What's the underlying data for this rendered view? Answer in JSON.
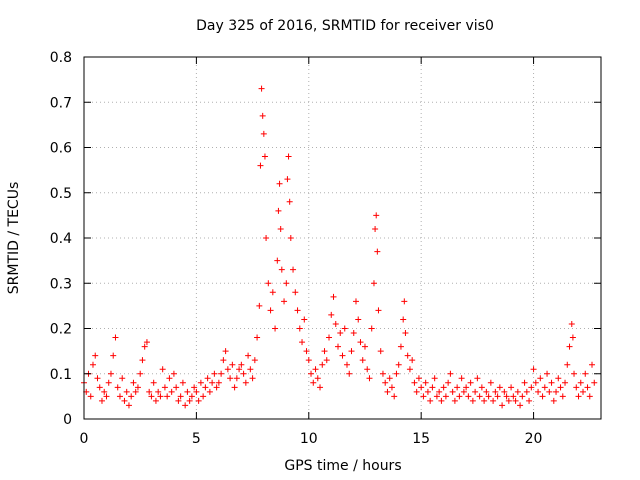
{
  "chart_data": {
    "type": "scatter",
    "title": "Day 325 of 2016, SRMTID for receiver vis0",
    "xlabel": "GPS time / hours",
    "ylabel": "SRMTID / TECUs",
    "xlim": [
      0,
      23
    ],
    "ylim": [
      0,
      0.8
    ],
    "xticks": [
      0,
      5,
      10,
      15,
      20
    ],
    "yticks": [
      0,
      0.1,
      0.2,
      0.3,
      0.4,
      0.5,
      0.6,
      0.7,
      0.8
    ],
    "xtick_labels": [
      "0",
      "5",
      "10",
      "15",
      "20"
    ],
    "ytick_labels": [
      "0",
      "0.1",
      "0.2",
      "0.3",
      "0.4",
      "0.5",
      "0.6",
      "0.7",
      "0.8"
    ],
    "grid": true,
    "marker": "+",
    "color": "#ff0000",
    "series": [
      {
        "name": "SRMTID",
        "points": [
          [
            0.0,
            0.08
          ],
          [
            0.1,
            0.06
          ],
          [
            0.2,
            0.1
          ],
          [
            0.3,
            0.05
          ],
          [
            0.4,
            0.12
          ],
          [
            0.5,
            0.14
          ],
          [
            0.6,
            0.09
          ],
          [
            0.7,
            0.07
          ],
          [
            0.8,
            0.04
          ],
          [
            0.9,
            0.06
          ],
          [
            1.0,
            0.05
          ],
          [
            1.1,
            0.08
          ],
          [
            1.2,
            0.1
          ],
          [
            1.3,
            0.14
          ],
          [
            1.4,
            0.18
          ],
          [
            1.5,
            0.07
          ],
          [
            1.6,
            0.05
          ],
          [
            1.7,
            0.09
          ],
          [
            1.8,
            0.04
          ],
          [
            1.9,
            0.06
          ],
          [
            2.0,
            0.03
          ],
          [
            2.1,
            0.05
          ],
          [
            2.2,
            0.08
          ],
          [
            2.3,
            0.06
          ],
          [
            2.4,
            0.07
          ],
          [
            2.5,
            0.1
          ],
          [
            2.6,
            0.13
          ],
          [
            2.7,
            0.16
          ],
          [
            2.8,
            0.17
          ],
          [
            2.9,
            0.06
          ],
          [
            3.0,
            0.05
          ],
          [
            3.1,
            0.08
          ],
          [
            3.2,
            0.04
          ],
          [
            3.3,
            0.06
          ],
          [
            3.4,
            0.05
          ],
          [
            3.5,
            0.11
          ],
          [
            3.6,
            0.07
          ],
          [
            3.7,
            0.05
          ],
          [
            3.8,
            0.09
          ],
          [
            3.9,
            0.06
          ],
          [
            4.0,
            0.1
          ],
          [
            4.1,
            0.07
          ],
          [
            4.2,
            0.04
          ],
          [
            4.3,
            0.05
          ],
          [
            4.4,
            0.08
          ],
          [
            4.5,
            0.03
          ],
          [
            4.6,
            0.06
          ],
          [
            4.7,
            0.04
          ],
          [
            4.8,
            0.05
          ],
          [
            4.9,
            0.07
          ],
          [
            5.0,
            0.06
          ],
          [
            5.1,
            0.04
          ],
          [
            5.2,
            0.08
          ],
          [
            5.3,
            0.05
          ],
          [
            5.4,
            0.07
          ],
          [
            5.5,
            0.09
          ],
          [
            5.6,
            0.06
          ],
          [
            5.7,
            0.08
          ],
          [
            5.8,
            0.1
          ],
          [
            5.9,
            0.07
          ],
          [
            6.0,
            0.08
          ],
          [
            6.1,
            0.1
          ],
          [
            6.2,
            0.13
          ],
          [
            6.3,
            0.15
          ],
          [
            6.4,
            0.11
          ],
          [
            6.5,
            0.09
          ],
          [
            6.6,
            0.12
          ],
          [
            6.7,
            0.07
          ],
          [
            6.8,
            0.09
          ],
          [
            6.9,
            0.11
          ],
          [
            7.0,
            0.12
          ],
          [
            7.1,
            0.1
          ],
          [
            7.2,
            0.08
          ],
          [
            7.3,
            0.14
          ],
          [
            7.4,
            0.11
          ],
          [
            7.5,
            0.09
          ],
          [
            7.6,
            0.13
          ],
          [
            7.7,
            0.18
          ],
          [
            7.8,
            0.25
          ],
          [
            7.85,
            0.56
          ],
          [
            7.9,
            0.73
          ],
          [
            7.95,
            0.67
          ],
          [
            8.0,
            0.63
          ],
          [
            8.05,
            0.58
          ],
          [
            8.1,
            0.4
          ],
          [
            8.2,
            0.3
          ],
          [
            8.3,
            0.24
          ],
          [
            8.4,
            0.28
          ],
          [
            8.5,
            0.2
          ],
          [
            8.6,
            0.35
          ],
          [
            8.65,
            0.46
          ],
          [
            8.7,
            0.52
          ],
          [
            8.75,
            0.42
          ],
          [
            8.8,
            0.33
          ],
          [
            8.9,
            0.26
          ],
          [
            9.0,
            0.3
          ],
          [
            9.05,
            0.53
          ],
          [
            9.1,
            0.58
          ],
          [
            9.15,
            0.48
          ],
          [
            9.2,
            0.4
          ],
          [
            9.3,
            0.33
          ],
          [
            9.4,
            0.28
          ],
          [
            9.5,
            0.24
          ],
          [
            9.6,
            0.2
          ],
          [
            9.7,
            0.17
          ],
          [
            9.8,
            0.22
          ],
          [
            9.9,
            0.15
          ],
          [
            10.0,
            0.13
          ],
          [
            10.1,
            0.1
          ],
          [
            10.2,
            0.08
          ],
          [
            10.3,
            0.11
          ],
          [
            10.4,
            0.09
          ],
          [
            10.5,
            0.07
          ],
          [
            10.6,
            0.12
          ],
          [
            10.7,
            0.15
          ],
          [
            10.8,
            0.13
          ],
          [
            10.9,
            0.18
          ],
          [
            11.0,
            0.23
          ],
          [
            11.1,
            0.27
          ],
          [
            11.2,
            0.21
          ],
          [
            11.3,
            0.16
          ],
          [
            11.4,
            0.19
          ],
          [
            11.5,
            0.14
          ],
          [
            11.6,
            0.2
          ],
          [
            11.7,
            0.12
          ],
          [
            11.8,
            0.1
          ],
          [
            11.9,
            0.15
          ],
          [
            12.0,
            0.19
          ],
          [
            12.1,
            0.26
          ],
          [
            12.2,
            0.22
          ],
          [
            12.3,
            0.17
          ],
          [
            12.4,
            0.13
          ],
          [
            12.5,
            0.16
          ],
          [
            12.6,
            0.11
          ],
          [
            12.7,
            0.09
          ],
          [
            12.8,
            0.2
          ],
          [
            12.9,
            0.3
          ],
          [
            12.95,
            0.42
          ],
          [
            13.0,
            0.45
          ],
          [
            13.05,
            0.37
          ],
          [
            13.1,
            0.24
          ],
          [
            13.2,
            0.15
          ],
          [
            13.3,
            0.1
          ],
          [
            13.4,
            0.08
          ],
          [
            13.5,
            0.06
          ],
          [
            13.6,
            0.09
          ],
          [
            13.7,
            0.07
          ],
          [
            13.8,
            0.05
          ],
          [
            13.9,
            0.1
          ],
          [
            14.0,
            0.12
          ],
          [
            14.1,
            0.16
          ],
          [
            14.2,
            0.22
          ],
          [
            14.25,
            0.26
          ],
          [
            14.3,
            0.19
          ],
          [
            14.4,
            0.14
          ],
          [
            14.5,
            0.11
          ],
          [
            14.6,
            0.13
          ],
          [
            14.7,
            0.08
          ],
          [
            14.8,
            0.06
          ],
          [
            14.9,
            0.09
          ],
          [
            15.0,
            0.07
          ],
          [
            15.1,
            0.05
          ],
          [
            15.2,
            0.08
          ],
          [
            15.3,
            0.06
          ],
          [
            15.4,
            0.04
          ],
          [
            15.5,
            0.07
          ],
          [
            15.6,
            0.09
          ],
          [
            15.7,
            0.05
          ],
          [
            15.8,
            0.06
          ],
          [
            15.9,
            0.04
          ],
          [
            16.0,
            0.07
          ],
          [
            16.1,
            0.05
          ],
          [
            16.2,
            0.08
          ],
          [
            16.3,
            0.1
          ],
          [
            16.4,
            0.06
          ],
          [
            16.5,
            0.04
          ],
          [
            16.6,
            0.07
          ],
          [
            16.7,
            0.05
          ],
          [
            16.8,
            0.09
          ],
          [
            16.9,
            0.06
          ],
          [
            17.0,
            0.07
          ],
          [
            17.1,
            0.05
          ],
          [
            17.2,
            0.08
          ],
          [
            17.3,
            0.04
          ],
          [
            17.4,
            0.06
          ],
          [
            17.5,
            0.09
          ],
          [
            17.6,
            0.05
          ],
          [
            17.7,
            0.07
          ],
          [
            17.8,
            0.04
          ],
          [
            17.9,
            0.06
          ],
          [
            18.0,
            0.05
          ],
          [
            18.1,
            0.08
          ],
          [
            18.2,
            0.04
          ],
          [
            18.3,
            0.06
          ],
          [
            18.4,
            0.05
          ],
          [
            18.5,
            0.07
          ],
          [
            18.6,
            0.03
          ],
          [
            18.7,
            0.06
          ],
          [
            18.8,
            0.05
          ],
          [
            18.9,
            0.04
          ],
          [
            19.0,
            0.07
          ],
          [
            19.1,
            0.05
          ],
          [
            19.2,
            0.04
          ],
          [
            19.3,
            0.06
          ],
          [
            19.4,
            0.03
          ],
          [
            19.5,
            0.05
          ],
          [
            19.6,
            0.08
          ],
          [
            19.7,
            0.06
          ],
          [
            19.8,
            0.04
          ],
          [
            19.9,
            0.07
          ],
          [
            20.0,
            0.11
          ],
          [
            20.1,
            0.08
          ],
          [
            20.2,
            0.06
          ],
          [
            20.3,
            0.09
          ],
          [
            20.4,
            0.05
          ],
          [
            20.5,
            0.07
          ],
          [
            20.6,
            0.1
          ],
          [
            20.7,
            0.06
          ],
          [
            20.8,
            0.08
          ],
          [
            20.9,
            0.04
          ],
          [
            21.0,
            0.06
          ],
          [
            21.1,
            0.09
          ],
          [
            21.2,
            0.07
          ],
          [
            21.3,
            0.05
          ],
          [
            21.4,
            0.08
          ],
          [
            21.5,
            0.12
          ],
          [
            21.6,
            0.16
          ],
          [
            21.7,
            0.21
          ],
          [
            21.75,
            0.18
          ],
          [
            21.8,
            0.1
          ],
          [
            21.9,
            0.07
          ],
          [
            22.0,
            0.05
          ],
          [
            22.1,
            0.08
          ],
          [
            22.2,
            0.06
          ],
          [
            22.3,
            0.1
          ],
          [
            22.4,
            0.07
          ],
          [
            22.5,
            0.05
          ],
          [
            22.6,
            0.12
          ],
          [
            22.7,
            0.08
          ]
        ]
      }
    ]
  }
}
